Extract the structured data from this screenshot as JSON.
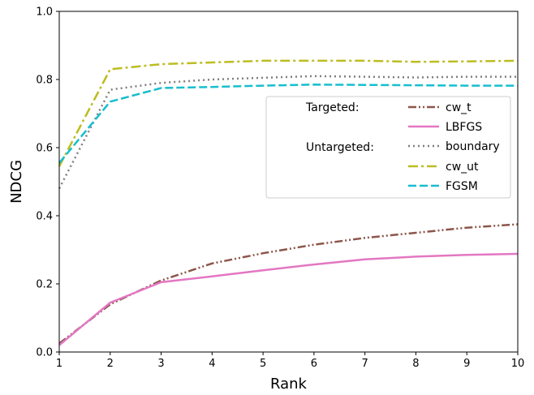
{
  "chart_data": {
    "type": "line",
    "xlabel": "Rank",
    "ylabel": "NDCG",
    "xlim": [
      1,
      10
    ],
    "ylim": [
      0.0,
      1.0
    ],
    "x_ticks": [
      "1",
      "2",
      "3",
      "4",
      "5",
      "6",
      "7",
      "8",
      "9",
      "10"
    ],
    "y_ticks": [
      "0.0",
      "0.2",
      "0.4",
      "0.6",
      "0.8",
      "1.0"
    ],
    "grid": false,
    "legend_position": "center-right",
    "legend_headers": [
      "Targeted:",
      "Untargeted:"
    ],
    "x": [
      1,
      2,
      3,
      4,
      5,
      6,
      7,
      8,
      9,
      10
    ],
    "series": [
      {
        "name": "cw_t",
        "group": "Targeted",
        "color": "#8c564b",
        "dash": "dash-dot-dot",
        "values": [
          0.025,
          0.14,
          0.21,
          0.26,
          0.29,
          0.315,
          0.335,
          0.35,
          0.365,
          0.375
        ]
      },
      {
        "name": "LBFGS",
        "group": "Targeted",
        "color": "#e377c2",
        "dash": "solid",
        "values": [
          0.02,
          0.145,
          0.205,
          0.222,
          0.24,
          0.257,
          0.272,
          0.28,
          0.285,
          0.288
        ]
      },
      {
        "name": "boundary",
        "group": "Untargeted",
        "color": "#7f7f7f",
        "dash": "dotted",
        "values": [
          0.48,
          0.77,
          0.79,
          0.8,
          0.805,
          0.81,
          0.808,
          0.806,
          0.808,
          0.808
        ]
      },
      {
        "name": "cw_ut",
        "group": "Untargeted",
        "color": "#bcbd22",
        "dash": "dash-dot",
        "values": [
          0.545,
          0.83,
          0.845,
          0.85,
          0.855,
          0.855,
          0.855,
          0.852,
          0.853,
          0.855
        ]
      },
      {
        "name": "FGSM",
        "group": "Untargeted",
        "color": "#17becf",
        "dash": "dashed",
        "values": [
          0.555,
          0.735,
          0.775,
          0.778,
          0.782,
          0.785,
          0.784,
          0.783,
          0.782,
          0.782
        ]
      }
    ]
  }
}
